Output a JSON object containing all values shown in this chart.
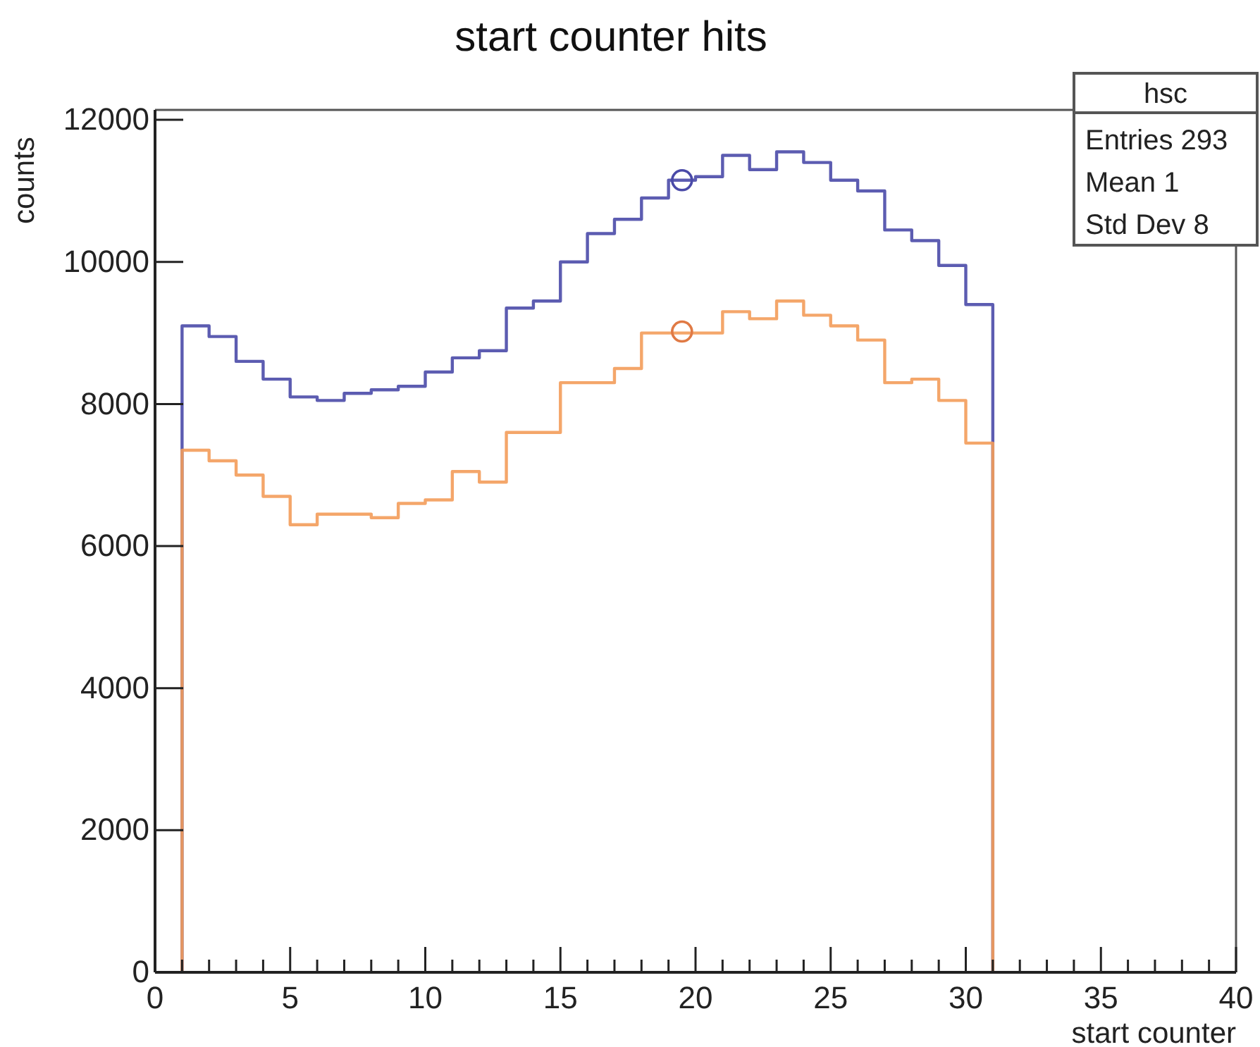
{
  "chart_data": {
    "type": "histogram",
    "title": "start counter hits",
    "xlabel": "start counter",
    "ylabel": "counts",
    "bins": [
      1,
      2,
      3,
      4,
      5,
      6,
      7,
      8,
      9,
      10,
      11,
      12,
      13,
      14,
      15,
      16,
      17,
      18,
      19,
      20,
      21,
      22,
      23,
      24,
      25,
      26,
      27,
      28,
      29,
      30,
      31
    ],
    "series": [
      {
        "color": "#4a4aa8",
        "values": [
          9100,
          8950,
          8600,
          8350,
          8100,
          8050,
          8150,
          8200,
          8250,
          8450,
          8650,
          8750,
          9350,
          9450,
          10000,
          10400,
          10600,
          10900,
          11150,
          11200,
          11500,
          11300,
          11550,
          11400,
          11150,
          11000,
          10450,
          10300,
          9950,
          9400
        ]
      },
      {
        "color": "#f39c5a",
        "values": [
          7350,
          7200,
          7000,
          6700,
          6300,
          6450,
          6450,
          6400,
          6600,
          6650,
          7050,
          6900,
          7600,
          7600,
          8300,
          8300,
          8500,
          9000,
          9000,
          9000,
          9300,
          9200,
          9450,
          9250,
          9100,
          8900,
          8300,
          8350,
          8050,
          7450
        ]
      },
      {
        "type": "scatter",
        "color": "#4a4aa8",
        "marker": "circle",
        "x": [
          19.5
        ],
        "values": [
          11150
        ]
      },
      {
        "type": "scatter",
        "color": "#e07a45",
        "marker": "circle",
        "x": [
          19.5
        ],
        "values": [
          9020
        ]
      }
    ],
    "xlim": [
      0,
      40
    ],
    "xticks": [
      0,
      5,
      10,
      15,
      20,
      25,
      30,
      35,
      40
    ],
    "ylim": [
      0,
      12140
    ],
    "yticks": [
      0,
      2000,
      4000,
      6000,
      8000,
      10000,
      12000
    ],
    "annotations": [
      "hsc",
      "Entries 293",
      "Mean 1",
      "Std Dev 8"
    ]
  }
}
